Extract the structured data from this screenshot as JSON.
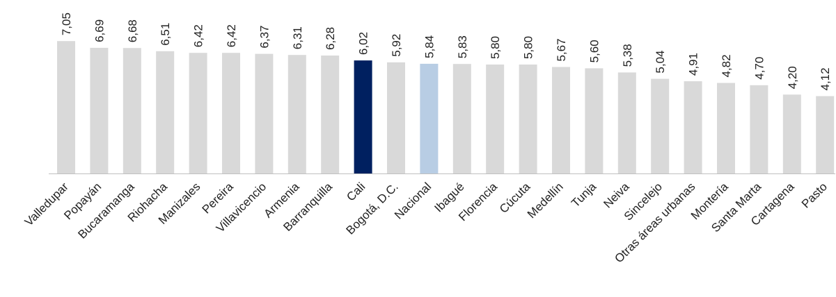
{
  "chart_data": {
    "type": "bar",
    "title": "",
    "xlabel": "",
    "ylabel": "",
    "ylim": [
      0,
      7.5
    ],
    "grid": false,
    "legend": "none",
    "categories": [
      "Valledupar",
      "Popayán",
      "Bucaramanga",
      "Riohacha",
      "Manizales",
      "Pereira",
      "Villavicencio",
      "Armenia",
      "Barranquilla",
      "Cali",
      "Bogotá, D.C.",
      "Nacional",
      "Ibagué",
      "Florencia",
      "Cúcuta",
      "Medellín",
      "Tunja",
      "Neiva",
      "Sincelejo",
      "Otras áreas urbanas",
      "Montería",
      "Santa Marta",
      "Cartagena",
      "Pasto"
    ],
    "values": [
      7.05,
      6.69,
      6.68,
      6.51,
      6.42,
      6.42,
      6.37,
      6.31,
      6.28,
      6.02,
      5.92,
      5.84,
      5.83,
      5.8,
      5.8,
      5.67,
      5.6,
      5.38,
      5.04,
      4.91,
      4.82,
      4.7,
      4.2,
      4.12
    ],
    "value_labels": [
      "7,05",
      "6,69",
      "6,68",
      "6,51",
      "6,42",
      "6,42",
      "6,37",
      "6,31",
      "6,28",
      "6,02",
      "5,92",
      "5,84",
      "5,83",
      "5,80",
      "5,80",
      "5,67",
      "5,60",
      "5,38",
      "5,04",
      "4,91",
      "4,82",
      "4,70",
      "4,20",
      "4,12"
    ],
    "colors": {
      "default": "#d9d9d9",
      "highlight": "#002060",
      "reference": "#b8cde4",
      "baseline": "#bfbfbf"
    },
    "highlight_category": "Cali",
    "reference_category": "Nacional"
  }
}
